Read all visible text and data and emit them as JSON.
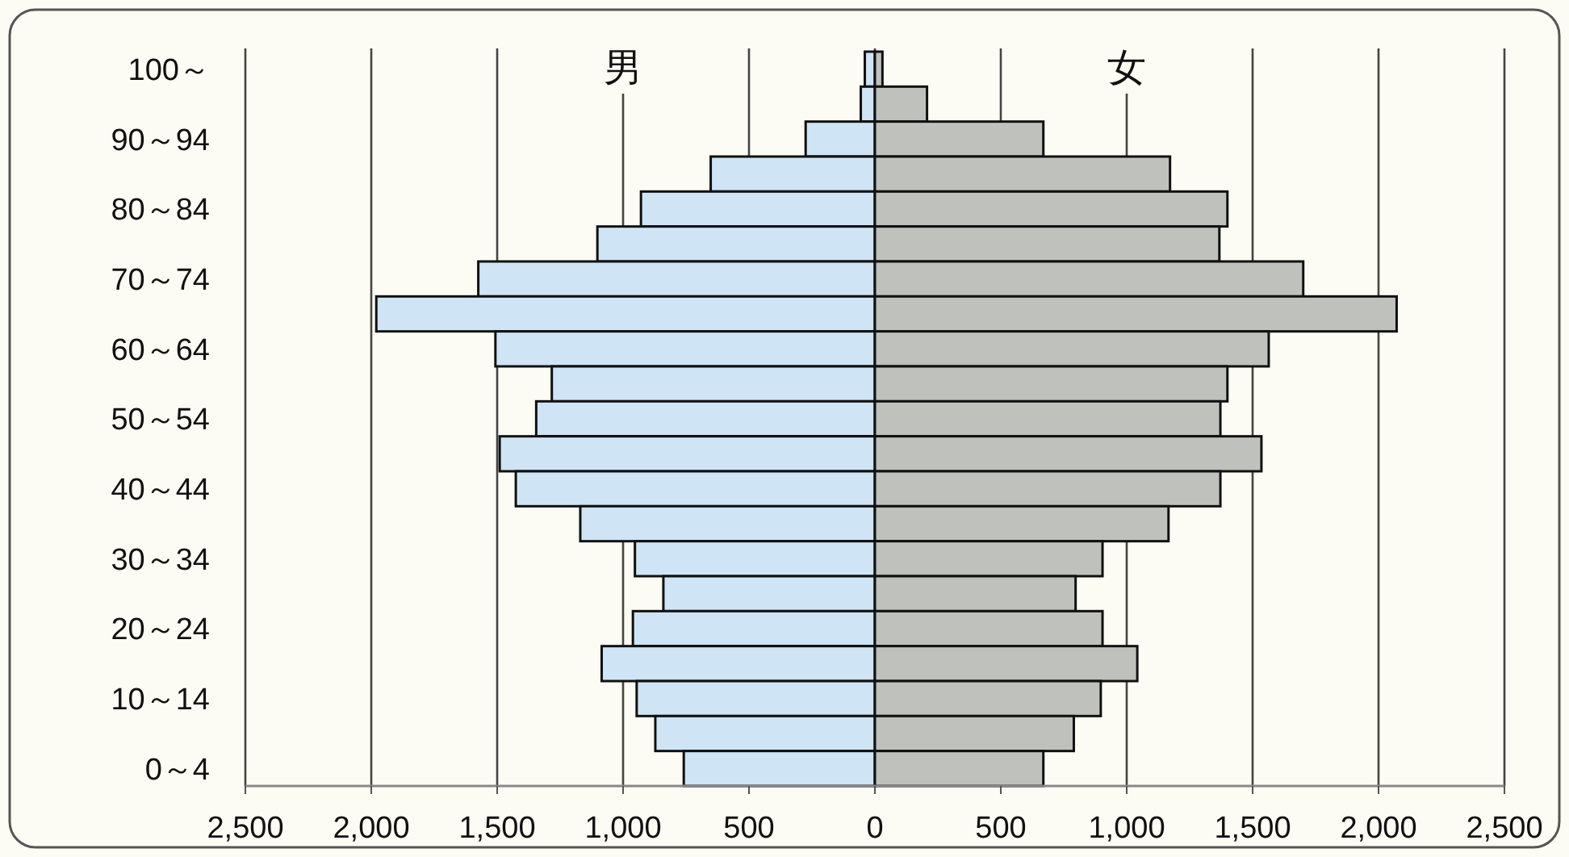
{
  "chart_data": {
    "type": "bar",
    "orientation": "horizontal",
    "stacked": true,
    "categories": [
      "100～",
      null,
      "90～94",
      null,
      "80～84",
      null,
      "70～74",
      null,
      "60～64",
      null,
      "50～54",
      null,
      "40～44",
      null,
      "30～34",
      null,
      "20～24",
      null,
      "10～14",
      null,
      "0～4"
    ],
    "series": [
      {
        "name": "男",
        "color": "#cfe4f5",
        "values": [
          -40,
          -56,
          -275,
          -652,
          -929,
          -1102,
          -1575,
          -1980,
          -1507,
          -1283,
          -1345,
          -1490,
          -1426,
          -1170,
          -953,
          -840,
          -961,
          -1085,
          -946,
          -872,
          -759
        ]
      },
      {
        "name": "女",
        "color": "#bfc2bc",
        "values": [
          30,
          207,
          669,
          1172,
          1400,
          1368,
          1701,
          2072,
          1564,
          1400,
          1372,
          1535,
          1372,
          1166,
          904,
          797,
          904,
          1042,
          897,
          790,
          669
        ]
      }
    ],
    "xlim": [
      -2500,
      2500
    ],
    "xticks": [
      {
        "value": -2500,
        "label": "2,500"
      },
      {
        "value": -2000,
        "label": "2,000"
      },
      {
        "value": -1500,
        "label": "1,500"
      },
      {
        "value": -1000,
        "label": "1,000"
      },
      {
        "value": -500,
        "label": "500"
      },
      0,
      500,
      {
        "value": 1000,
        "label": "1,000"
      },
      {
        "value": 1500,
        "label": "1,500"
      },
      {
        "value": 2000,
        "label": "2,000"
      },
      {
        "value": 2500,
        "label": "2,500"
      }
    ],
    "grid": "x"
  }
}
